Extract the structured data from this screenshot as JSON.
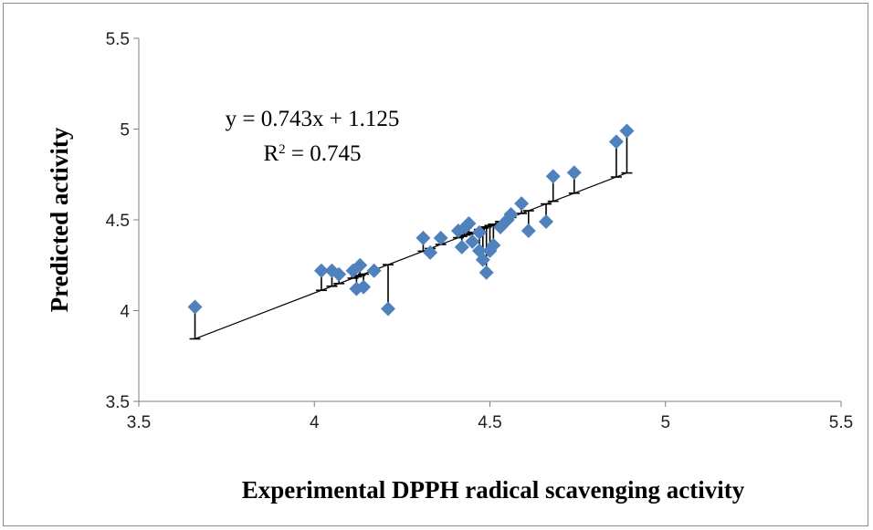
{
  "chart_data": {
    "type": "scatter",
    "title": "",
    "xlabel": "Experimental DPPH radical scavenging activity",
    "ylabel": "Predicted activity",
    "xlim": [
      3.5,
      5.5
    ],
    "ylim": [
      3.5,
      5.5
    ],
    "xticks": [
      "3.5",
      "4",
      "4.5",
      "5",
      "5.5"
    ],
    "yticks": [
      "3.5",
      "4",
      "4.5",
      "5",
      "5.5"
    ],
    "grid": false,
    "legend": "none",
    "marker": "diamond",
    "marker_color": "#4f81bd",
    "trendline": {
      "slope": 0.743,
      "intercept": 1.125,
      "x_range": [
        3.66,
        4.89
      ],
      "equation_label": "y = 0.743x + 1.125",
      "r2_label_prefix": "R",
      "r2_label_suffix": " = 0.745"
    },
    "error_bars": "from predicted point to trendline",
    "points": [
      {
        "x": 3.66,
        "y": 4.02
      },
      {
        "x": 4.02,
        "y": 4.22
      },
      {
        "x": 4.05,
        "y": 4.22
      },
      {
        "x": 4.07,
        "y": 4.2
      },
      {
        "x": 4.11,
        "y": 4.22
      },
      {
        "x": 4.12,
        "y": 4.12
      },
      {
        "x": 4.13,
        "y": 4.25
      },
      {
        "x": 4.14,
        "y": 4.13
      },
      {
        "x": 4.17,
        "y": 4.22
      },
      {
        "x": 4.21,
        "y": 4.01
      },
      {
        "x": 4.31,
        "y": 4.4
      },
      {
        "x": 4.33,
        "y": 4.32
      },
      {
        "x": 4.36,
        "y": 4.4
      },
      {
        "x": 4.41,
        "y": 4.44
      },
      {
        "x": 4.42,
        "y": 4.35
      },
      {
        "x": 4.43,
        "y": 4.46
      },
      {
        "x": 4.44,
        "y": 4.48
      },
      {
        "x": 4.45,
        "y": 4.38
      },
      {
        "x": 4.47,
        "y": 4.43
      },
      {
        "x": 4.47,
        "y": 4.33
      },
      {
        "x": 4.48,
        "y": 4.28
      },
      {
        "x": 4.49,
        "y": 4.21
      },
      {
        "x": 4.5,
        "y": 4.33
      },
      {
        "x": 4.51,
        "y": 4.36
      },
      {
        "x": 4.53,
        "y": 4.46
      },
      {
        "x": 4.55,
        "y": 4.5
      },
      {
        "x": 4.56,
        "y": 4.53
      },
      {
        "x": 4.59,
        "y": 4.59
      },
      {
        "x": 4.61,
        "y": 4.44
      },
      {
        "x": 4.66,
        "y": 4.49
      },
      {
        "x": 4.68,
        "y": 4.74
      },
      {
        "x": 4.74,
        "y": 4.76
      },
      {
        "x": 4.86,
        "y": 4.93
      },
      {
        "x": 4.89,
        "y": 4.99
      }
    ]
  }
}
